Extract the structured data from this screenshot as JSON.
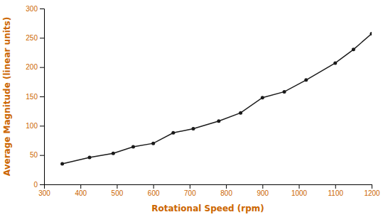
{
  "chart_data": {
    "type": "line",
    "x": [
      350,
      425,
      490,
      545,
      600,
      655,
      710,
      780,
      840,
      900,
      960,
      1020,
      1100,
      1150,
      1200
    ],
    "values": [
      35,
      46,
      53,
      64,
      70,
      88,
      95,
      108,
      122,
      148,
      158,
      178,
      207,
      230,
      257
    ],
    "x_label": "Rotational Speed (rpm)",
    "y_label": "Average Magnitude (linear units)",
    "xlim": [
      300,
      1200
    ],
    "ylim": [
      0,
      300
    ],
    "xticks": [
      300,
      400,
      500,
      600,
      700,
      800,
      900,
      1000,
      1100,
      1200
    ],
    "yticks": [
      0,
      50,
      100,
      150,
      200,
      250,
      300
    ],
    "color": "#1a1a1a",
    "marker": "point",
    "grid": false
  }
}
